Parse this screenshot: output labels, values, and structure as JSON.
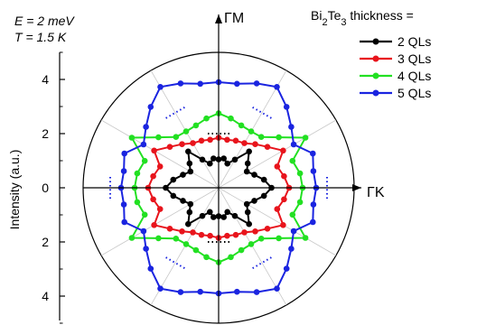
{
  "chart_data": {
    "type": "polar-line",
    "conditions": {
      "energy": "E = 2 meV",
      "temperature": "T = 1.5 K"
    },
    "ylabel": "Intensity (a.u.)",
    "yticks": [
      4,
      2,
      0,
      2,
      4
    ],
    "ylim": [
      -5,
      5
    ],
    "axis_labels": {
      "vertical": "ΓM",
      "horizontal": "ΓK"
    },
    "legend": {
      "title": "Bi2Te3 thickness =",
      "placement": "top-right"
    },
    "angle_convention": "degrees counter-clockwise from the ΓK (right) axis",
    "series": [
      {
        "name": "2 QLs",
        "color": "#000000",
        "points": [
          [
            0,
            1.95
          ],
          [
            10,
            1.7
          ],
          [
            20,
            1.4
          ],
          [
            30,
            1.2
          ],
          [
            40,
            1.4
          ],
          [
            50,
            1.75
          ],
          [
            60,
            1.2
          ],
          [
            70,
            0.95
          ],
          [
            80,
            1.1
          ],
          [
            90,
            1.05
          ],
          [
            100,
            1.1
          ],
          [
            110,
            0.95
          ],
          [
            120,
            1.2
          ],
          [
            130,
            1.75
          ],
          [
            140,
            1.4
          ],
          [
            150,
            1.2
          ],
          [
            160,
            1.4
          ],
          [
            170,
            1.7
          ],
          [
            180,
            1.95
          ],
          [
            190,
            1.7
          ],
          [
            200,
            1.4
          ],
          [
            210,
            1.2
          ],
          [
            220,
            1.4
          ],
          [
            230,
            1.75
          ],
          [
            240,
            1.2
          ],
          [
            250,
            0.95
          ],
          [
            260,
            1.1
          ],
          [
            270,
            1.05
          ],
          [
            280,
            1.1
          ],
          [
            290,
            0.95
          ],
          [
            300,
            1.2
          ],
          [
            310,
            1.75
          ],
          [
            320,
            1.4
          ],
          [
            330,
            1.2
          ],
          [
            340,
            1.4
          ],
          [
            350,
            1.7
          ]
        ]
      },
      {
        "name": "3 QLs",
        "color": "#e8141c",
        "points": [
          [
            0,
            2.6
          ],
          [
            10,
            2.45
          ],
          [
            20,
            2.3
          ],
          [
            30,
            2.75
          ],
          [
            40,
            2.35
          ],
          [
            50,
            2.1
          ],
          [
            60,
            1.9
          ],
          [
            70,
            1.85
          ],
          [
            80,
            1.8
          ],
          [
            90,
            1.85
          ],
          [
            100,
            1.8
          ],
          [
            110,
            1.85
          ],
          [
            120,
            1.9
          ],
          [
            130,
            2.1
          ],
          [
            140,
            2.35
          ],
          [
            150,
            2.75
          ],
          [
            160,
            2.3
          ],
          [
            170,
            2.45
          ],
          [
            180,
            2.6
          ],
          [
            190,
            2.45
          ],
          [
            200,
            2.3
          ],
          [
            210,
            2.75
          ],
          [
            220,
            2.35
          ],
          [
            230,
            2.1
          ],
          [
            240,
            1.9
          ],
          [
            250,
            1.85
          ],
          [
            260,
            1.8
          ],
          [
            270,
            1.85
          ],
          [
            280,
            1.8
          ],
          [
            290,
            1.85
          ],
          [
            300,
            1.9
          ],
          [
            310,
            2.1
          ],
          [
            320,
            2.35
          ],
          [
            330,
            2.75
          ],
          [
            340,
            2.3
          ],
          [
            350,
            2.45
          ]
        ]
      },
      {
        "name": "4 QLs",
        "color": "#22e022",
        "points": [
          [
            0,
            3.1
          ],
          [
            10,
            3.05
          ],
          [
            20,
            2.9
          ],
          [
            30,
            3.7
          ],
          [
            40,
            2.9
          ],
          [
            50,
            2.45
          ],
          [
            60,
            2.4
          ],
          [
            70,
            2.45
          ],
          [
            80,
            2.6
          ],
          [
            90,
            2.75
          ],
          [
            100,
            2.6
          ],
          [
            110,
            2.45
          ],
          [
            120,
            2.4
          ],
          [
            130,
            2.45
          ],
          [
            140,
            2.9
          ],
          [
            150,
            3.7
          ],
          [
            160,
            2.9
          ],
          [
            170,
            3.05
          ],
          [
            180,
            3.1
          ],
          [
            190,
            3.05
          ],
          [
            200,
            2.9
          ],
          [
            210,
            3.7
          ],
          [
            220,
            2.9
          ],
          [
            230,
            2.45
          ],
          [
            240,
            2.4
          ],
          [
            250,
            2.45
          ],
          [
            260,
            2.6
          ],
          [
            270,
            2.75
          ],
          [
            280,
            2.6
          ],
          [
            290,
            2.45
          ],
          [
            300,
            2.4
          ],
          [
            310,
            2.45
          ],
          [
            320,
            2.9
          ],
          [
            330,
            3.7
          ],
          [
            340,
            2.9
          ],
          [
            350,
            3.05
          ]
        ]
      },
      {
        "name": "5 QLs",
        "color": "#1a24e0",
        "points": [
          [
            0,
            3.6
          ],
          [
            10,
            3.55
          ],
          [
            20,
            3.7
          ],
          [
            30,
            3.2
          ],
          [
            40,
            3.5
          ],
          [
            50,
            3.9
          ],
          [
            60,
            4.3
          ],
          [
            70,
            4.1
          ],
          [
            80,
            3.9
          ],
          [
            90,
            3.9
          ],
          [
            100,
            3.9
          ],
          [
            110,
            4.1
          ],
          [
            120,
            4.3
          ],
          [
            130,
            3.9
          ],
          [
            140,
            3.5
          ],
          [
            150,
            3.2
          ],
          [
            160,
            3.7
          ],
          [
            170,
            3.55
          ],
          [
            180,
            3.6
          ],
          [
            190,
            3.55
          ],
          [
            200,
            3.7
          ],
          [
            210,
            3.2
          ],
          [
            220,
            3.5
          ],
          [
            230,
            3.9
          ],
          [
            240,
            4.3
          ],
          [
            250,
            4.1
          ],
          [
            260,
            3.9
          ],
          [
            270,
            3.9
          ],
          [
            280,
            3.9
          ],
          [
            290,
            4.1
          ],
          [
            300,
            4.3
          ],
          [
            310,
            3.9
          ],
          [
            320,
            3.5
          ],
          [
            330,
            3.2
          ],
          [
            340,
            3.7
          ],
          [
            350,
            3.55
          ]
        ]
      }
    ]
  }
}
